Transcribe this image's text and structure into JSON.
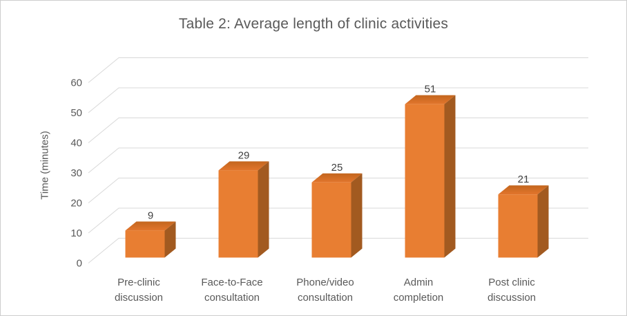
{
  "chart_data": {
    "type": "bar",
    "variant": "3d-column",
    "title": "Table 2: Average length of clinic activities",
    "categories": [
      "Pre-clinic discussion",
      "Face-to-Face consultation",
      "Phone/video consultation",
      "Admin completion",
      "Post clinic discussion"
    ],
    "values": [
      9,
      29,
      25,
      51,
      21
    ],
    "xlabel": "",
    "ylabel": "Time (minutes)",
    "ylim": [
      0,
      60
    ],
    "ytick_step": 10,
    "ytick_labels": [
      "0",
      "10",
      "20",
      "30",
      "40",
      "50",
      "60"
    ],
    "grid": true,
    "legend": false,
    "data_labels_shown": true,
    "colors": {
      "bar_front": "#E87E32",
      "bar_top_back": "#C3661E",
      "bar_top_front": "#E2752C",
      "bar_side": "#A25A20",
      "gridline": "#D8D8D8",
      "axis_text": "#595959",
      "title_text": "#595959",
      "data_label_text": "#404040",
      "background": "#FFFFFF",
      "frame_border": "#CDCDCD"
    }
  }
}
